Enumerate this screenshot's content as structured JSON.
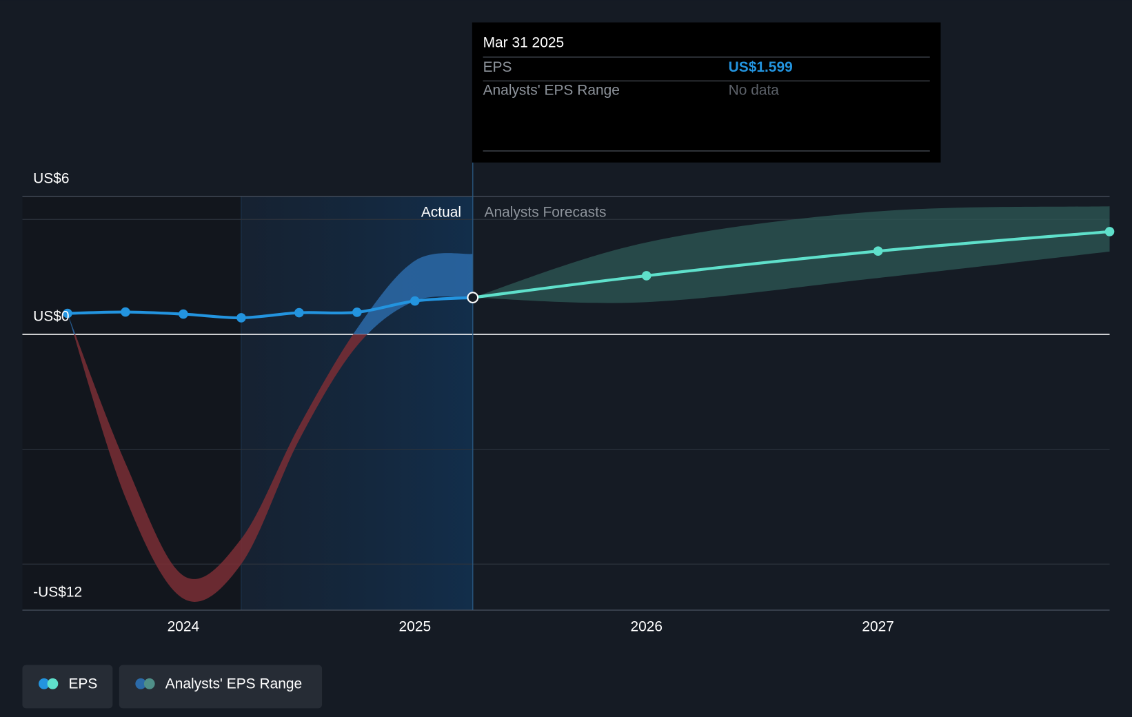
{
  "chart_data": {
    "type": "line",
    "xlim": [
      2023.305,
      2028
    ],
    "xticks": [
      2024,
      2025,
      2026,
      2027
    ],
    "ylim": [
      -12,
      6
    ],
    "yticks": [
      {
        "value": 6,
        "label": "US$6"
      },
      {
        "value": 0,
        "label": "US$0"
      },
      {
        "value": -12,
        "label": "-US$12"
      }
    ],
    "grid_lines": [
      6,
      5,
      0,
      -5,
      -10
    ],
    "highlight_start": 2024.25,
    "divider_x": 2025.25,
    "divider_labels": {
      "left": "Actual",
      "right": "Analysts Forecasts"
    },
    "series": [
      {
        "name": "EPS",
        "color": "#2394df",
        "forecast_color": "#5fe0cb",
        "x": [
          2023.5,
          2023.75,
          2024.0,
          2024.25,
          2024.5,
          2024.75,
          2025.0,
          2025.25,
          2026.0,
          2027.0,
          2028.0
        ],
        "values": [
          0.91,
          0.97,
          0.88,
          0.72,
          0.94,
          0.96,
          1.45,
          1.599,
          2.55,
          3.62,
          4.47
        ]
      }
    ],
    "ranges": [
      {
        "name": "Analysts' EPS Range",
        "period": "actual",
        "color_positive": "#2b6aa8",
        "color_negative": "#7a2e35",
        "x": [
          2023.5,
          2023.75,
          2024.0,
          2024.25,
          2024.5,
          2024.75,
          2025.0,
          2025.25
        ],
        "low": [
          0.91,
          -7.1,
          -11.5,
          -10.0,
          -4.6,
          -0.5,
          1.45,
          1.599
        ],
        "high": [
          0.91,
          -5.6,
          -10.5,
          -8.9,
          -4.0,
          0.25,
          3.2,
          3.5
        ]
      },
      {
        "name": "Analysts' EPS Range",
        "period": "forecast",
        "color_positive": "#2e5a56",
        "x": [
          2025.25,
          2026.0,
          2027.0,
          2028.0
        ],
        "low": [
          1.599,
          1.4,
          2.45,
          3.6
        ],
        "high": [
          1.599,
          4.0,
          5.35,
          5.57
        ]
      }
    ],
    "tooltip": {
      "date": "Mar 31 2025",
      "point": 7,
      "rows": [
        {
          "label": "EPS",
          "value": "US$1.599"
        },
        {
          "label": "Analysts' EPS Range",
          "value": "No data"
        }
      ]
    },
    "legend": [
      "EPS",
      "Analysts' EPS Range"
    ]
  }
}
